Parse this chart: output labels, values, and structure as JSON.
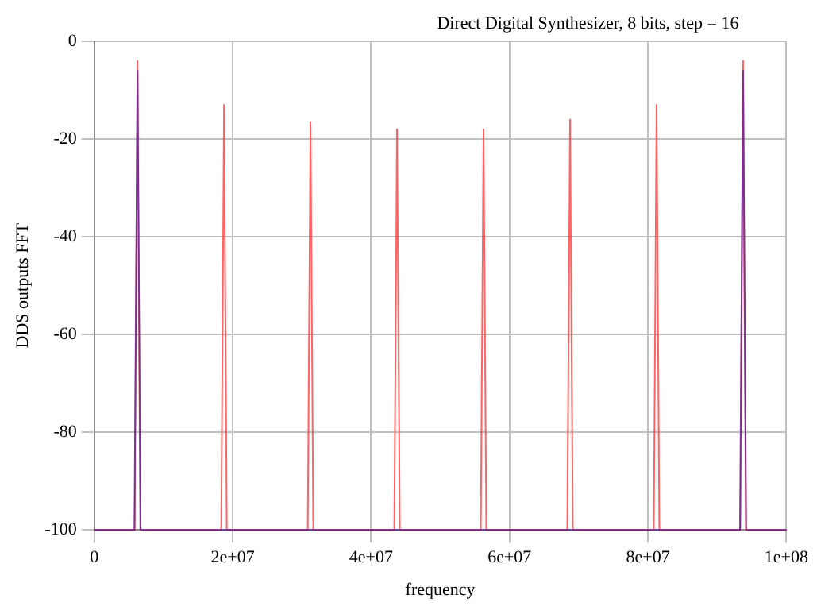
{
  "chart_data": {
    "type": "line",
    "title": "Direct Digital Synthesizer, 8 bits, step = 16",
    "xlabel": "frequency",
    "ylabel": "DDS outputs FFT",
    "series": [
      {
        "color": "#ff3030",
        "x": [
          0,
          5850000,
          6250000,
          6650000,
          18350000,
          18750000,
          19150000,
          30850000,
          31250000,
          31650000,
          43350000,
          43750000,
          44150000,
          55850000,
          56250000,
          56650000,
          68350000,
          68750000,
          69150000,
          80850000,
          81250000,
          81650000,
          93350000,
          93750000,
          94150000,
          100000000
        ],
        "values": [
          -100,
          -100,
          -4,
          -100,
          -100,
          -13,
          -100,
          -100,
          -16.5,
          -100,
          -100,
          -18,
          -100,
          -100,
          -18,
          -100,
          -100,
          -16,
          -100,
          -100,
          -13,
          -100,
          -100,
          -4,
          -100,
          -100
        ]
      },
      {
        "color": "#5020a0",
        "x": [
          0,
          5800000,
          6250000,
          6700000,
          93300000,
          93750000,
          94200000,
          100000000
        ],
        "values": [
          -100,
          -100,
          -6,
          -100,
          -100,
          -6,
          -100,
          -100
        ]
      }
    ],
    "xlim": [
      0,
      100000000
    ],
    "xticks": [
      0,
      {
        "value": 20000000,
        "label": "2e+07"
      },
      {
        "value": 40000000,
        "label": "4e+07"
      },
      {
        "value": 60000000,
        "label": "6e+07"
      },
      {
        "value": 80000000,
        "label": "8e+07"
      },
      {
        "value": 100000000,
        "label": "1e+08"
      }
    ],
    "ylim": [
      -100,
      0
    ],
    "yticks": [
      0,
      -20,
      -40,
      -60,
      -80,
      -100
    ],
    "grid": true,
    "marker": "none",
    "line_style": "solid"
  }
}
